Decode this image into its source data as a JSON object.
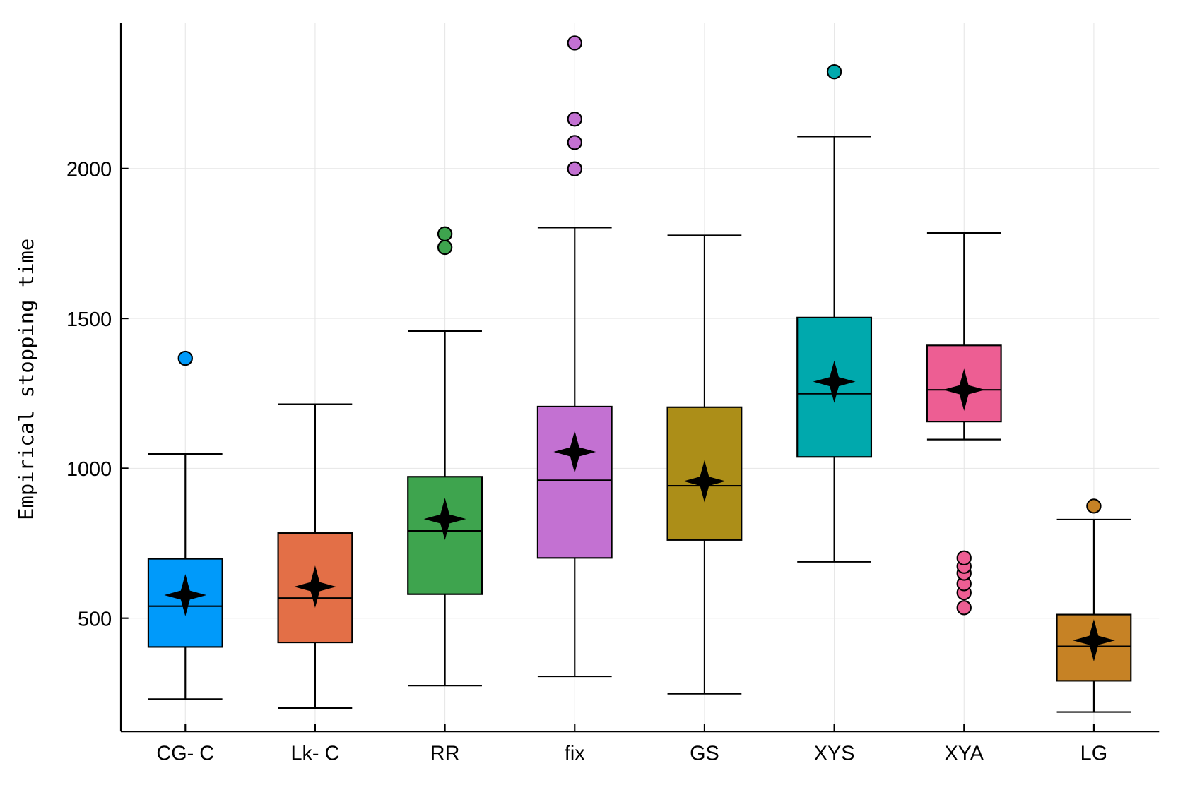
{
  "chart_data": {
    "type": "box",
    "title": "",
    "xlabel": "",
    "ylabel": "Empirical stopping time",
    "ylim": [
      122,
      2487
    ],
    "yticks": [
      500,
      1000,
      1500,
      2000
    ],
    "ytick_labels": [
      "500",
      "1000",
      "1500",
      "2000"
    ],
    "grid": true,
    "legend": "none",
    "categories": [
      "CG- C",
      "Lk- C",
      "RR",
      "fix",
      "GS",
      "XYS",
      "XYA",
      "LG"
    ],
    "colors": [
      "#009AFA",
      "#E36F47",
      "#3EA44E",
      "#C371D2",
      "#AC8E18",
      "#00A9AD",
      "#ED5E93",
      "#C68225"
    ],
    "boxes": [
      {
        "whisker_low": 230,
        "q1": 404,
        "median": 540,
        "q3": 698,
        "whisker_high": 1048,
        "mean": 577,
        "outliers": [
          1367
        ]
      },
      {
        "whisker_low": 200,
        "q1": 419,
        "median": 567,
        "q3": 784,
        "whisker_high": 1214,
        "mean": 605,
        "outliers": []
      },
      {
        "whisker_low": 275,
        "q1": 580,
        "median": 791,
        "q3": 972,
        "whisker_high": 1458,
        "mean": 831,
        "outliers": [
          1737,
          1782
        ]
      },
      {
        "whisker_low": 306,
        "q1": 701,
        "median": 960,
        "q3": 1206,
        "whisker_high": 1803,
        "mean": 1055,
        "outliers": [
          1999,
          2087,
          2165,
          2419
        ]
      },
      {
        "whisker_low": 248,
        "q1": 761,
        "median": 942,
        "q3": 1204,
        "whisker_high": 1777,
        "mean": 957,
        "outliers": []
      },
      {
        "whisker_low": 688,
        "q1": 1038,
        "median": 1249,
        "q3": 1503,
        "whisker_high": 2107,
        "mean": 1289,
        "outliers": [
          2323
        ]
      },
      {
        "whisker_low": 1096,
        "q1": 1156,
        "median": 1262,
        "q3": 1410,
        "whisker_high": 1785,
        "mean": 1262,
        "outliers": [
          535,
          585,
          615,
          650,
          673,
          701
        ]
      },
      {
        "whisker_low": 187,
        "q1": 291,
        "median": 406,
        "q3": 512,
        "whisker_high": 829,
        "mean": 426,
        "outliers": [
          874
        ]
      }
    ],
    "mean_marker": "four-point-star"
  }
}
